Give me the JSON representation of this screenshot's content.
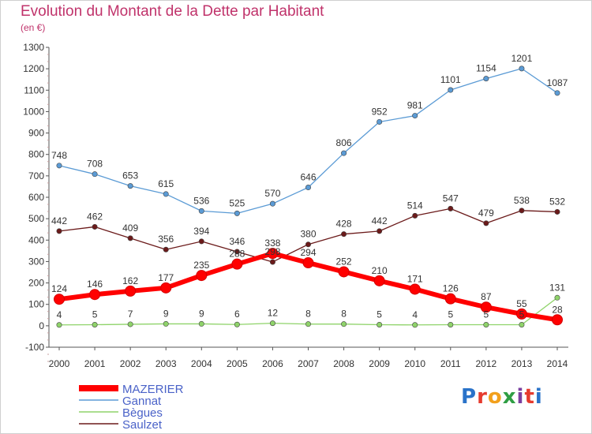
{
  "title": "Evolution du Montant de la Dette par Habitant",
  "subtitle": "(en €)",
  "brand": "Proxiti",
  "chart_data": {
    "type": "line",
    "title": "Evolution du Montant de la Dette par Habitant",
    "subtitle": "(en €)",
    "x": [
      2000,
      2001,
      2002,
      2003,
      2004,
      2005,
      2006,
      2007,
      2008,
      2009,
      2010,
      2011,
      2012,
      2013,
      2014
    ],
    "ylim": [
      -100,
      1300
    ],
    "yticks": [
      -100,
      0,
      100,
      200,
      300,
      400,
      500,
      600,
      700,
      800,
      900,
      1000,
      1100,
      1200,
      1300
    ],
    "grid": false,
    "legend": "bottom-left",
    "series": [
      {
        "name": "Gannat",
        "color": "#5b9bd5",
        "values": [
          748,
          708,
          653,
          615,
          536,
          525,
          570,
          646,
          806,
          952,
          981,
          1101,
          1154,
          1201,
          1087
        ]
      },
      {
        "name": "Saulzet",
        "color": "#6b1a1a",
        "values": [
          442,
          462,
          409,
          356,
          394,
          346,
          298,
          380,
          428,
          442,
          514,
          547,
          479,
          538,
          532
        ]
      },
      {
        "name": "Bègues",
        "color": "#8fd36a",
        "values": [
          4,
          5,
          7,
          9,
          9,
          6,
          12,
          8,
          8,
          5,
          4,
          5,
          5,
          5,
          131
        ]
      },
      {
        "name": "MAZERIER",
        "color": "#ff0000",
        "values": [
          124,
          146,
          162,
          177,
          235,
          288,
          338,
          294,
          252,
          210,
          171,
          126,
          87,
          55,
          28
        ]
      }
    ]
  }
}
